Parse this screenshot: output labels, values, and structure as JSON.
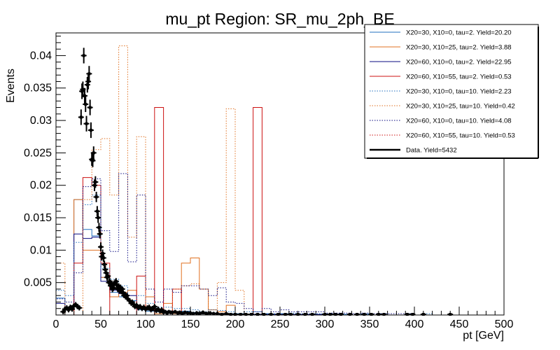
{
  "chart_data": {
    "type": "histogram",
    "title": "mu_pt Region: SR_mu_2ph_BE",
    "xlabel": "pt [GeV]",
    "ylabel": "Events",
    "xlim": [
      0,
      500
    ],
    "ylim": [
      0,
      0.0435
    ],
    "bin_width": 10,
    "bin_edges_start": 0,
    "x_ticks": [
      0,
      50,
      100,
      150,
      200,
      250,
      300,
      350,
      400,
      450,
      500
    ],
    "y_ticks": [
      0.005,
      0.01,
      0.015,
      0.02,
      0.025,
      0.03,
      0.035,
      0.04
    ],
    "y_tick_labels": [
      "0.005",
      "0.01",
      "0.015",
      "0.02",
      "0.025",
      "0.03",
      "0.035",
      "0.04"
    ],
    "grid": false,
    "legend_position": "top-right",
    "series": [
      {
        "name": "X20=30, X10=0, tau=2. Yield=20.20",
        "color": "#1f6fbf",
        "style": "solid",
        "values": [
          0.0026,
          0.0012,
          0.0178,
          0.0132,
          0.0122,
          0.0058,
          0.0035,
          0.0028,
          0.0022,
          0.0008,
          0.0006,
          0.0005,
          0.0004,
          0.0003,
          0.0006,
          0.0004,
          0.0002,
          0.0003,
          0.0002,
          0.0002,
          0.0002,
          0.0001,
          0.0001,
          0.0002,
          0.0001,
          0.0002,
          0.0001,
          0.0001,
          0.0001,
          0.0001,
          0.0001,
          0.0001,
          0.0001,
          0,
          0.0001,
          0,
          0,
          0,
          0,
          0,
          0,
          0,
          0,
          0,
          0,
          0,
          0,
          0,
          0,
          0
        ]
      },
      {
        "name": "X20=30, X10=25, tau=2. Yield=3.88",
        "color": "#e07020",
        "style": "solid",
        "values": [
          0,
          0,
          0.0178,
          0.01,
          0.01,
          0.0058,
          0.0028,
          0.0035,
          0.0038,
          0.0012,
          0.0028,
          0.0002,
          0.0018,
          0.0002,
          0.008,
          0.0088,
          0.004,
          0.0008,
          0.0005,
          0.0015,
          0,
          0,
          0,
          0,
          0,
          0,
          0,
          0,
          0,
          0,
          0,
          0,
          0,
          0,
          0,
          0,
          0,
          0,
          0,
          0,
          0,
          0,
          0,
          0,
          0,
          0,
          0,
          0,
          0,
          0
        ]
      },
      {
        "name": "X20=60, X10=0, tau=2. Yield=22.95",
        "color": "#0a0a80",
        "style": "solid",
        "values": [
          0.0018,
          0.0012,
          0.0125,
          0.0118,
          0.012,
          0.0052,
          0.0038,
          0.0033,
          0.003,
          0.001,
          0.001,
          0.0007,
          0.0006,
          0.0004,
          0.0003,
          0.0003,
          0.0002,
          0.0002,
          0.0002,
          0.0001,
          0.0001,
          0.0001,
          0.0001,
          0.0001,
          0.0001,
          0.0001,
          0.0001,
          0.0001,
          0.0001,
          0.0001,
          0,
          0,
          0,
          0,
          0,
          0,
          0,
          0,
          0,
          0,
          0,
          0,
          0,
          0,
          0,
          0,
          0,
          0,
          0,
          0
        ]
      },
      {
        "name": "X20=60, X10=55, tau=2. Yield=0.53",
        "color": "#cc1111",
        "style": "solid",
        "values": [
          0,
          0,
          0.008,
          0.0212,
          0.02,
          0.008,
          0,
          0,
          0,
          0.006,
          0,
          0.032,
          0,
          0.004,
          0,
          0,
          0,
          0,
          0,
          0,
          0,
          0,
          0.032,
          0,
          0,
          0,
          0,
          0,
          0,
          0,
          0,
          0,
          0,
          0,
          0,
          0,
          0,
          0,
          0,
          0,
          0,
          0,
          0,
          0,
          0,
          0,
          0,
          0,
          0,
          0
        ]
      },
      {
        "name": "X20=30, X10=0, tau=10. Yield=2.23",
        "color": "#1f6fbf",
        "style": "dotted",
        "values": [
          0.0038,
          0.003,
          0.0112,
          0.017,
          0.0185,
          0.0072,
          0.0055,
          0.0045,
          0.0022,
          0.003,
          0.0018,
          0.0012,
          0.0012,
          0.001,
          0.001,
          0.0008,
          0.0005,
          0.0008,
          0.0007,
          0.0005,
          0.0002,
          0.0005,
          0.0005,
          0.0002,
          0.0002,
          0.0002,
          0.0003,
          0.0002,
          0.0002,
          0.0002,
          0.0002,
          0.0002,
          0.0001,
          0,
          0.0002,
          0,
          0.0002,
          0,
          0,
          0.0002,
          0,
          0.0002,
          0,
          0,
          0,
          0,
          0,
          0,
          0,
          0
        ]
      },
      {
        "name": "X20=30, X10=25, tau=10. Yield=0.42",
        "color": "#e07020",
        "style": "dotted",
        "values": [
          0.008,
          0,
          0,
          0.0178,
          0.0255,
          0.0272,
          0.0185,
          0.0415,
          0.012,
          0.0275,
          0,
          0,
          0,
          0.004,
          0.0045,
          0.0048,
          0.004,
          0,
          0.005,
          0.0318,
          0.0038,
          0,
          0,
          0,
          0,
          0,
          0,
          0,
          0,
          0,
          0,
          0,
          0,
          0,
          0,
          0,
          0,
          0,
          0,
          0,
          0,
          0,
          0,
          0,
          0,
          0,
          0,
          0,
          0,
          0
        ]
      },
      {
        "name": "X20=60, X10=0, tau=10. Yield=4.08",
        "color": "#0a0a80",
        "style": "dotted",
        "values": [
          0.0025,
          0.002,
          0.0065,
          0.0198,
          0.021,
          0.013,
          0.0098,
          0.0218,
          0.0082,
          0.0185,
          0.004,
          0.002,
          0.004,
          0.0035,
          0.0045,
          0.0045,
          0.004,
          0.003,
          0.0042,
          0.002,
          0.0018,
          0.001,
          0.0005,
          0.001,
          0.0005,
          0.0008,
          0.0005,
          0.0005,
          0.0005,
          0.0005,
          0.0003,
          0.0003,
          0.0003,
          0.0002,
          0.0003,
          0.0002,
          0.0002,
          0.0002,
          0.0002,
          0.0002,
          0,
          0,
          0,
          0,
          0,
          0,
          0,
          0,
          0,
          0
        ]
      },
      {
        "name": "X20=60, X10=55, tau=10. Yield=0.53",
        "color": "#cc1111",
        "style": "dotted",
        "values": [
          0,
          0,
          0,
          0,
          0,
          0,
          0,
          0,
          0,
          0,
          0,
          0,
          0,
          0,
          0,
          0,
          0,
          0,
          0,
          0,
          0,
          0,
          0,
          0,
          0,
          0,
          0,
          0,
          0,
          0,
          0,
          0,
          0,
          0,
          0,
          0,
          0,
          0,
          0,
          0,
          0,
          0,
          0,
          0,
          0,
          0,
          0,
          0,
          0,
          0
        ]
      }
    ],
    "data_series": {
      "name": "Data. Yield=5432",
      "color": "#000000",
      "points": [
        {
          "x": 8,
          "y": 0.0005,
          "err": 0.0004
        },
        {
          "x": 10,
          "y": 0.0009,
          "err": 0.0004
        },
        {
          "x": 12,
          "y": 0.0011,
          "err": 0.0004
        },
        {
          "x": 14,
          "y": 0.0008,
          "err": 0.0004
        },
        {
          "x": 16,
          "y": 0.0012,
          "err": 0.0004
        },
        {
          "x": 18,
          "y": 0.0009,
          "err": 0.0004
        },
        {
          "x": 20,
          "y": 0.0014,
          "err": 0.0004
        },
        {
          "x": 22,
          "y": 0.0016,
          "err": 0.0004
        },
        {
          "x": 24,
          "y": 0.0013,
          "err": 0.0004
        },
        {
          "x": 26,
          "y": 0.0011,
          "err": 0.0004
        },
        {
          "x": 28,
          "y": 0.0305,
          "err": 0.0012
        },
        {
          "x": 29,
          "y": 0.0345,
          "err": 0.0012
        },
        {
          "x": 30,
          "y": 0.0348,
          "err": 0.0012
        },
        {
          "x": 31,
          "y": 0.04,
          "err": 0.0012
        },
        {
          "x": 32,
          "y": 0.0338,
          "err": 0.0012
        },
        {
          "x": 33,
          "y": 0.0325,
          "err": 0.0012
        },
        {
          "x": 34,
          "y": 0.0295,
          "err": 0.0012
        },
        {
          "x": 35,
          "y": 0.0355,
          "err": 0.0012
        },
        {
          "x": 36,
          "y": 0.036,
          "err": 0.0012
        },
        {
          "x": 37,
          "y": 0.0372,
          "err": 0.0012
        },
        {
          "x": 38,
          "y": 0.032,
          "err": 0.0012
        },
        {
          "x": 39,
          "y": 0.0285,
          "err": 0.0012
        },
        {
          "x": 40,
          "y": 0.024,
          "err": 0.001
        },
        {
          "x": 41,
          "y": 0.0238,
          "err": 0.001
        },
        {
          "x": 42,
          "y": 0.025,
          "err": 0.001
        },
        {
          "x": 43,
          "y": 0.02,
          "err": 0.0009
        },
        {
          "x": 44,
          "y": 0.0205,
          "err": 0.0009
        },
        {
          "x": 45,
          "y": 0.0182,
          "err": 0.0008
        },
        {
          "x": 46,
          "y": 0.016,
          "err": 0.0008
        },
        {
          "x": 47,
          "y": 0.015,
          "err": 0.0008
        },
        {
          "x": 48,
          "y": 0.0135,
          "err": 0.0007
        },
        {
          "x": 49,
          "y": 0.0125,
          "err": 0.0007
        },
        {
          "x": 50,
          "y": 0.0105,
          "err": 0.0007
        },
        {
          "x": 51,
          "y": 0.009,
          "err": 0.0006
        },
        {
          "x": 52,
          "y": 0.0095,
          "err": 0.0006
        },
        {
          "x": 53,
          "y": 0.0088,
          "err": 0.0006
        },
        {
          "x": 54,
          "y": 0.0078,
          "err": 0.0006
        },
        {
          "x": 55,
          "y": 0.007,
          "err": 0.0006
        },
        {
          "x": 56,
          "y": 0.0065,
          "err": 0.0005
        },
        {
          "x": 57,
          "y": 0.0058,
          "err": 0.0005
        },
        {
          "x": 58,
          "y": 0.006,
          "err": 0.0005
        },
        {
          "x": 59,
          "y": 0.005,
          "err": 0.0005
        },
        {
          "x": 60,
          "y": 0.0052,
          "err": 0.0005
        },
        {
          "x": 61,
          "y": 0.0045,
          "err": 0.0005
        },
        {
          "x": 62,
          "y": 0.0048,
          "err": 0.0005
        },
        {
          "x": 63,
          "y": 0.004,
          "err": 0.0005
        },
        {
          "x": 64,
          "y": 0.0042,
          "err": 0.0005
        },
        {
          "x": 65,
          "y": 0.0048,
          "err": 0.0005
        },
        {
          "x": 66,
          "y": 0.005,
          "err": 0.0005
        },
        {
          "x": 67,
          "y": 0.0052,
          "err": 0.0005
        },
        {
          "x": 68,
          "y": 0.0046,
          "err": 0.0005
        },
        {
          "x": 69,
          "y": 0.004,
          "err": 0.0005
        },
        {
          "x": 70,
          "y": 0.0044,
          "err": 0.0005
        },
        {
          "x": 71,
          "y": 0.0038,
          "err": 0.0005
        },
        {
          "x": 72,
          "y": 0.0042,
          "err": 0.0005
        },
        {
          "x": 73,
          "y": 0.0036,
          "err": 0.0004
        },
        {
          "x": 74,
          "y": 0.004,
          "err": 0.0004
        },
        {
          "x": 75,
          "y": 0.0034,
          "err": 0.0004
        },
        {
          "x": 76,
          "y": 0.003,
          "err": 0.0004
        },
        {
          "x": 77,
          "y": 0.0032,
          "err": 0.0004
        },
        {
          "x": 78,
          "y": 0.0028,
          "err": 0.0004
        },
        {
          "x": 79,
          "y": 0.003,
          "err": 0.0004
        },
        {
          "x": 80,
          "y": 0.0025,
          "err": 0.0004
        },
        {
          "x": 82,
          "y": 0.0022,
          "err": 0.0004
        },
        {
          "x": 84,
          "y": 0.0018,
          "err": 0.0004
        },
        {
          "x": 85,
          "y": 0.002,
          "err": 0.0004
        },
        {
          "x": 87,
          "y": 0.0016,
          "err": 0.0004
        },
        {
          "x": 88,
          "y": 0.0013,
          "err": 0.0004
        },
        {
          "x": 90,
          "y": 0.0015,
          "err": 0.0004
        },
        {
          "x": 92,
          "y": 0.0011,
          "err": 0.0004
        },
        {
          "x": 94,
          "y": 0.0013,
          "err": 0.0004
        },
        {
          "x": 96,
          "y": 0.001,
          "err": 0.0004
        },
        {
          "x": 98,
          "y": 0.0012,
          "err": 0.0004
        },
        {
          "x": 100,
          "y": 0.0009,
          "err": 0.0004
        },
        {
          "x": 102,
          "y": 0.0011,
          "err": 0.0004
        },
        {
          "x": 104,
          "y": 0.0012,
          "err": 0.0004
        },
        {
          "x": 106,
          "y": 0.0008,
          "err": 0.0004
        },
        {
          "x": 108,
          "y": 0.001,
          "err": 0.0004
        },
        {
          "x": 110,
          "y": 0.0013,
          "err": 0.0004
        },
        {
          "x": 112,
          "y": 0.0007,
          "err": 0.0004
        },
        {
          "x": 114,
          "y": 0.0009,
          "err": 0.0004
        },
        {
          "x": 116,
          "y": 0.0006,
          "err": 0.0004
        },
        {
          "x": 118,
          "y": 0.0008,
          "err": 0.0004
        },
        {
          "x": 120,
          "y": 0.0004,
          "err": 0.0003
        },
        {
          "x": 122,
          "y": 0.0005,
          "err": 0.0003
        },
        {
          "x": 124,
          "y": 0.0003,
          "err": 0.0003
        },
        {
          "x": 126,
          "y": 0.0005,
          "err": 0.0003
        },
        {
          "x": 128,
          "y": 0.0004,
          "err": 0.0003
        },
        {
          "x": 130,
          "y": 0.0004,
          "err": 0.0003
        },
        {
          "x": 133,
          "y": 0.0005,
          "err": 0.0003
        },
        {
          "x": 136,
          "y": 0.0003,
          "err": 0.0003
        },
        {
          "x": 138,
          "y": 0.0004,
          "err": 0.0003
        },
        {
          "x": 141,
          "y": 0.0002,
          "err": 0.0003
        },
        {
          "x": 144,
          "y": 0.0004,
          "err": 0.0003
        },
        {
          "x": 147,
          "y": 0.0003,
          "err": 0.0003
        },
        {
          "x": 150,
          "y": 0.0003,
          "err": 0.0003
        },
        {
          "x": 153,
          "y": 0.0002,
          "err": 0.0003
        },
        {
          "x": 157,
          "y": 0.0003,
          "err": 0.0003
        },
        {
          "x": 160,
          "y": 0.0002,
          "err": 0.0003
        },
        {
          "x": 164,
          "y": 0.0004,
          "err": 0.0003
        },
        {
          "x": 168,
          "y": 0.0002,
          "err": 0.0003
        },
        {
          "x": 172,
          "y": 0.0003,
          "err": 0.0003
        },
        {
          "x": 176,
          "y": 0.0002,
          "err": 0.0003
        },
        {
          "x": 180,
          "y": 0.0002,
          "err": 0.0003
        },
        {
          "x": 185,
          "y": 0.0001,
          "err": 0.0002
        },
        {
          "x": 190,
          "y": 0.0002,
          "err": 0.0002
        },
        {
          "x": 195,
          "y": 0.0001,
          "err": 0.0002
        },
        {
          "x": 200,
          "y": 0.0001,
          "err": 0.0002
        },
        {
          "x": 206,
          "y": 0.0001,
          "err": 0.0002
        },
        {
          "x": 212,
          "y": 0.0001,
          "err": 0.0002
        },
        {
          "x": 218,
          "y": 0.0001,
          "err": 0.0002
        },
        {
          "x": 225,
          "y": 0.0001,
          "err": 0.0002
        },
        {
          "x": 232,
          "y": 0.0001,
          "err": 0.0002
        },
        {
          "x": 240,
          "y": 0.0001,
          "err": 0.0002
        },
        {
          "x": 248,
          "y": 0.0001,
          "err": 0.0002
        },
        {
          "x": 256,
          "y": 0.0001,
          "err": 0.0002
        },
        {
          "x": 262,
          "y": 0.0001,
          "err": 0.0002
        },
        {
          "x": 270,
          "y": 0.0001,
          "err": 0.0002
        },
        {
          "x": 278,
          "y": 0.0001,
          "err": 0.0002
        },
        {
          "x": 286,
          "y": 0.0001,
          "err": 0.0002
        },
        {
          "x": 300,
          "y": 0.0001,
          "err": 0.0002
        },
        {
          "x": 306,
          "y": 0.0001,
          "err": 0.0002
        },
        {
          "x": 312,
          "y": 0.0001,
          "err": 0.0002
        },
        {
          "x": 318,
          "y": 0.0001,
          "err": 0.0002
        },
        {
          "x": 328,
          "y": 0.0001,
          "err": 0.0002
        },
        {
          "x": 336,
          "y": 0.0001,
          "err": 0.0002
        },
        {
          "x": 344,
          "y": 0.0001,
          "err": 0.0002
        },
        {
          "x": 352,
          "y": 0.0001,
          "err": 0.0002
        },
        {
          "x": 360,
          "y": 0.0001,
          "err": 0.0002
        },
        {
          "x": 366,
          "y": 0.0001,
          "err": 0.0002
        },
        {
          "x": 392,
          "y": 0.0001,
          "err": 0.0002
        },
        {
          "x": 398,
          "y": 0.0001,
          "err": 0.0002
        },
        {
          "x": 410,
          "y": 0.0001,
          "err": 0.0002
        },
        {
          "x": 440,
          "y": 0.0001,
          "err": 0.0002
        }
      ]
    }
  }
}
